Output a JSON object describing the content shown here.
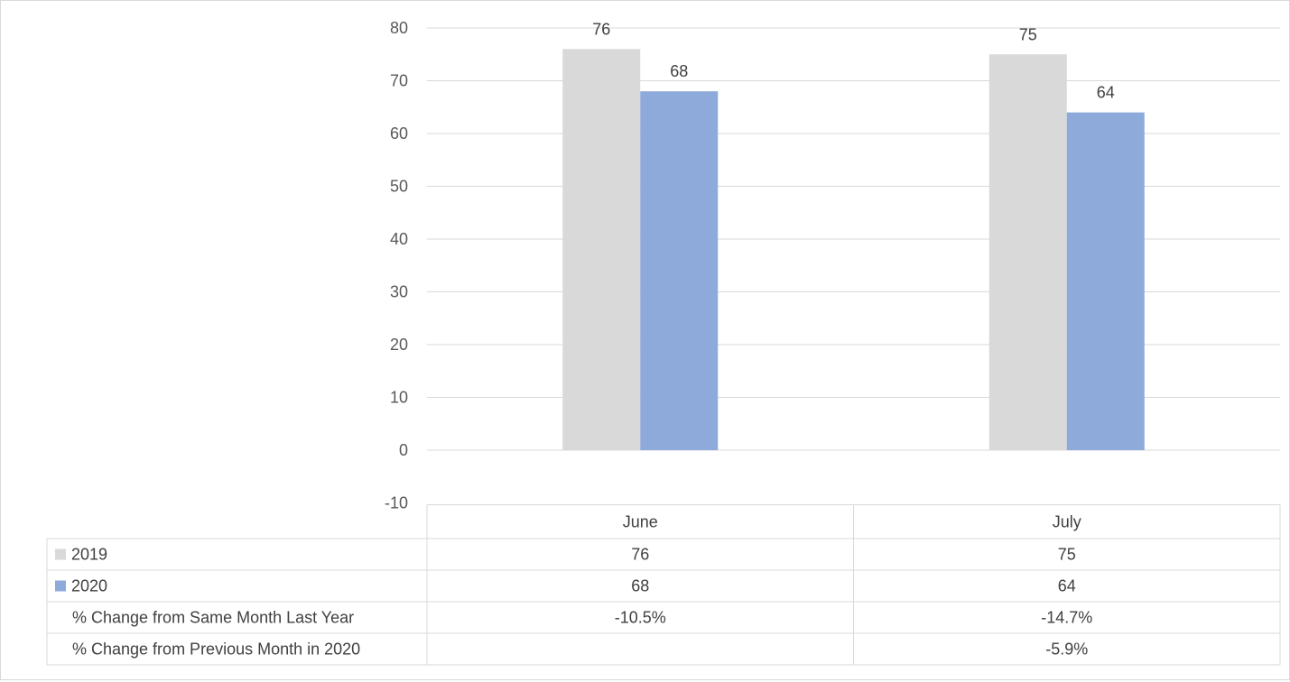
{
  "chart_data": {
    "type": "bar",
    "categories": [
      "June",
      "July"
    ],
    "series": [
      {
        "name": "2019",
        "values": [
          76,
          75
        ],
        "color": "#d9d9d9"
      },
      {
        "name": "2020",
        "values": [
          68,
          64
        ],
        "color": "#8eaadb"
      }
    ],
    "y_ticks": [
      "-10",
      "0",
      "10",
      "20",
      "30",
      "40",
      "50",
      "60",
      "70",
      "80"
    ],
    "ylim": [
      -10,
      80
    ],
    "grid": true,
    "data_table": {
      "rows": [
        {
          "label": "2019",
          "legend_key": true,
          "series_index": 0,
          "cells": [
            "76",
            "75"
          ]
        },
        {
          "label": "2020",
          "legend_key": true,
          "series_index": 1,
          "cells": [
            "68",
            "64"
          ]
        },
        {
          "label": "% Change from Same Month Last Year",
          "legend_key": false,
          "cells": [
            "-10.5%",
            "-14.7%"
          ]
        },
        {
          "label": "% Change from Previous Month in 2020",
          "legend_key": false,
          "cells": [
            "",
            "-5.9%"
          ]
        }
      ]
    },
    "gridline_color": "#d9d9d9",
    "table_border_color": "#d9d9d9"
  }
}
